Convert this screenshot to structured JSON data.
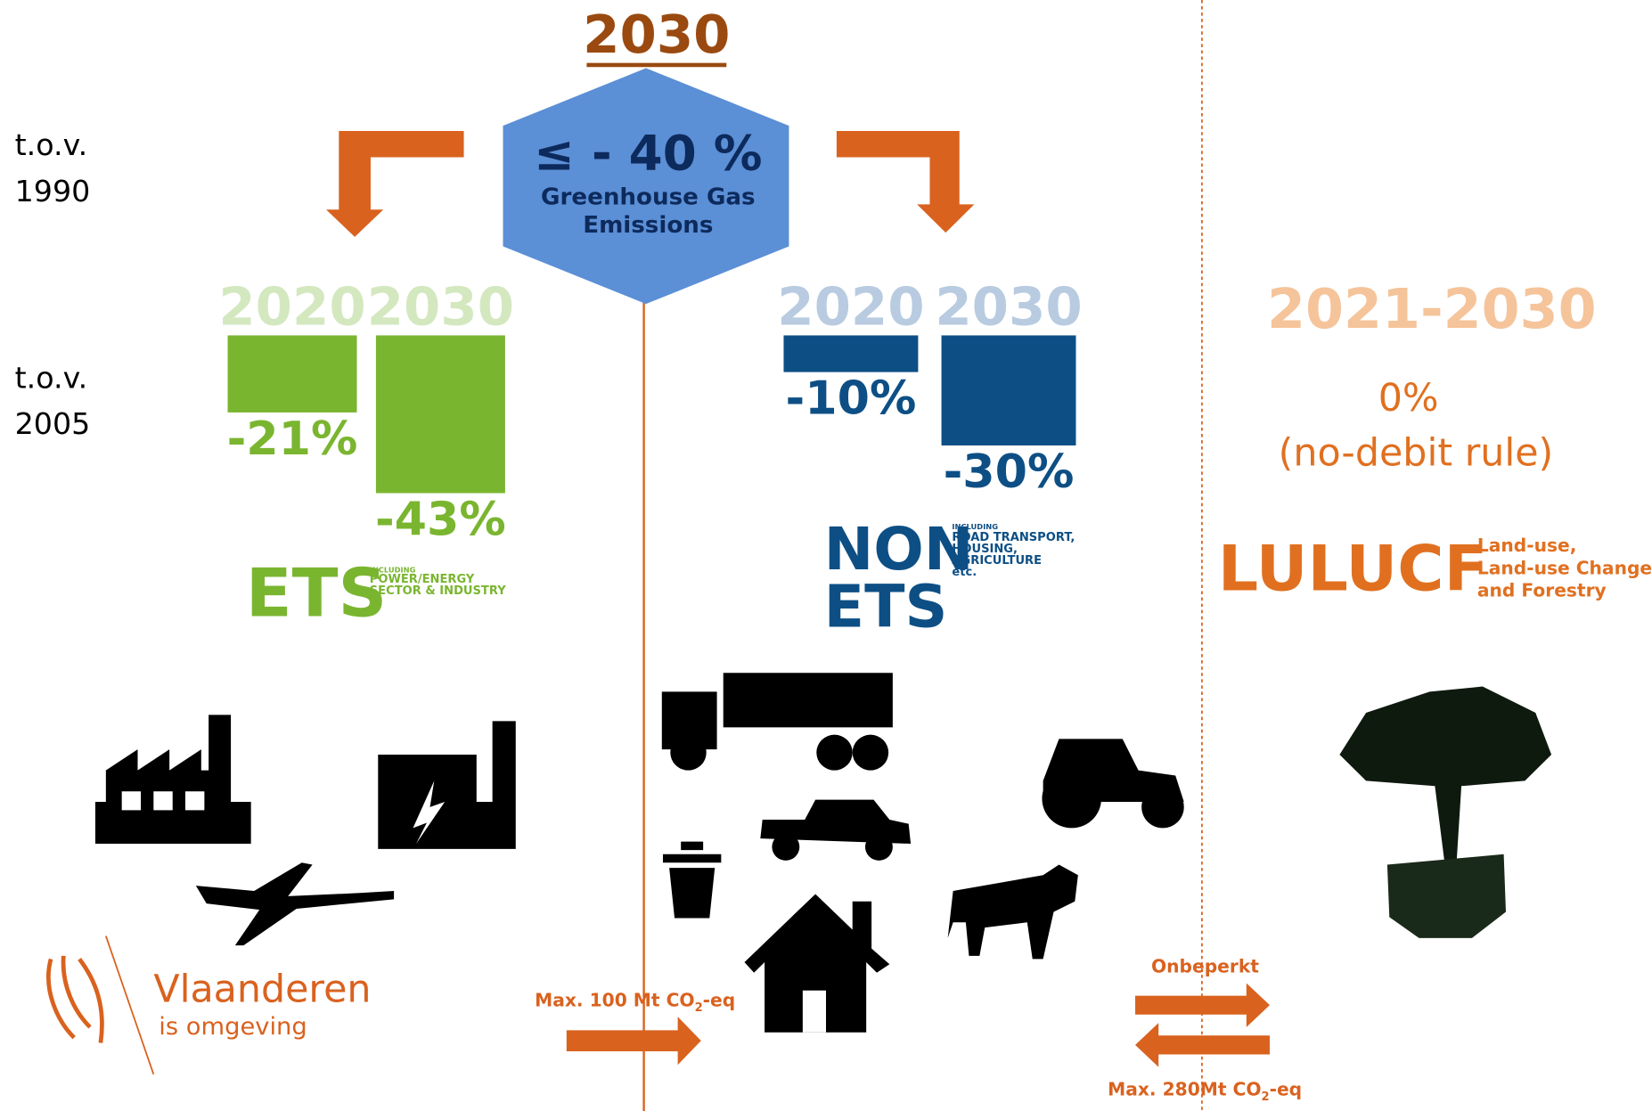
{
  "title": "2030",
  "target": {
    "value": "≤ - 40 %",
    "line1": "Greenhouse Gas",
    "line2": "Emissions"
  },
  "baseline_1990": [
    "t.o.v.",
    "1990"
  ],
  "baseline_2005": [
    "t.o.v.",
    "2005"
  ],
  "ets": {
    "years": [
      "2020",
      "2030"
    ],
    "values": [
      -21,
      -43
    ],
    "value_labels": [
      "-21%",
      "-43%"
    ],
    "name": "ETS",
    "note": [
      "INCLUDING",
      "POWER/ENERGY",
      "SECTOR & INDUSTRY"
    ]
  },
  "non_ets": {
    "years": [
      "2020",
      "2030"
    ],
    "values": [
      -10,
      -30
    ],
    "value_labels": [
      "-10%",
      "-30%"
    ],
    "name": [
      "NON",
      "ETS"
    ],
    "note": [
      "INCLUDING",
      "ROAD TRANSPORT,",
      "HOUSING,",
      "AGRICULTURE",
      "etc."
    ]
  },
  "lulucf": {
    "period": "2021-2030",
    "value": "0%",
    "rule": "(no-debit rule)",
    "name": "LULUCF",
    "note": [
      "Land-use,",
      "Land-use Change",
      "and Forestry"
    ]
  },
  "logo": {
    "name": "Vlaanderen",
    "tagline": "is omgeving"
  },
  "flows": {
    "ets_to_non": [
      "Max. 100 Mt CO",
      "2",
      "-eq"
    ],
    "unlimited": "Onbeperkt",
    "lulucf_to_non": [
      "Max. 280Mt CO",
      "2",
      "-eq"
    ]
  }
}
